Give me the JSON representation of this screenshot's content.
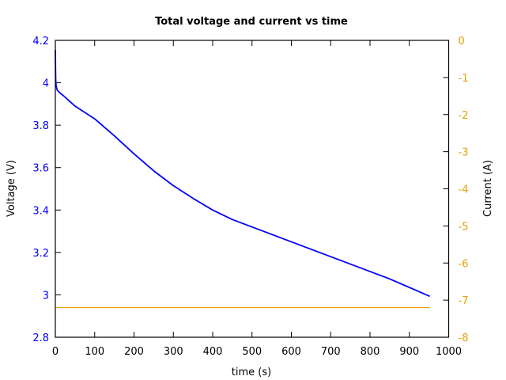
{
  "chart_data": {
    "type": "line",
    "title": "Total voltage and current vs time",
    "xlabel": "time (s)",
    "ylabel": "Voltage (V)",
    "y2label": "Current (A)",
    "xlim": [
      0,
      1000
    ],
    "ylim": [
      2.8,
      4.2
    ],
    "y2lim": [
      -8,
      0
    ],
    "grid": false,
    "xticks": [
      "0",
      "100",
      "200",
      "300",
      "400",
      "500",
      "600",
      "700",
      "800",
      "900",
      "1000"
    ],
    "yticks": [
      "2.8",
      "3",
      "3.2",
      "3.4",
      "3.6",
      "3.8",
      "4",
      "4.2"
    ],
    "y2ticks": [
      "-8",
      "-7",
      "-6",
      "-5",
      "-4",
      "-3",
      "-2",
      "-1",
      "0"
    ],
    "colors": {
      "voltage": "#0000ff",
      "current": "#e6a000",
      "axis_left": "#0000ff",
      "axis_right": "#e6a000"
    },
    "series": [
      {
        "axis": "left",
        "color": "#0000ff",
        "x": [
          0,
          0.5,
          1,
          2,
          5,
          10,
          20,
          50,
          100,
          150,
          200,
          250,
          300,
          350,
          400,
          450,
          500,
          550,
          600,
          650,
          700,
          750,
          800,
          850,
          900,
          952
        ],
        "y": [
          4.155,
          4.06,
          4.01,
          3.985,
          3.965,
          3.955,
          3.94,
          3.89,
          3.83,
          3.75,
          3.665,
          3.585,
          3.515,
          3.455,
          3.4,
          3.355,
          3.32,
          3.285,
          3.25,
          3.215,
          3.18,
          3.145,
          3.11,
          3.075,
          3.035,
          2.993
        ]
      },
      {
        "axis": "right",
        "color": "#e6a000",
        "x": [
          0,
          952
        ],
        "y": [
          -7.2,
          -7.2
        ]
      }
    ]
  }
}
